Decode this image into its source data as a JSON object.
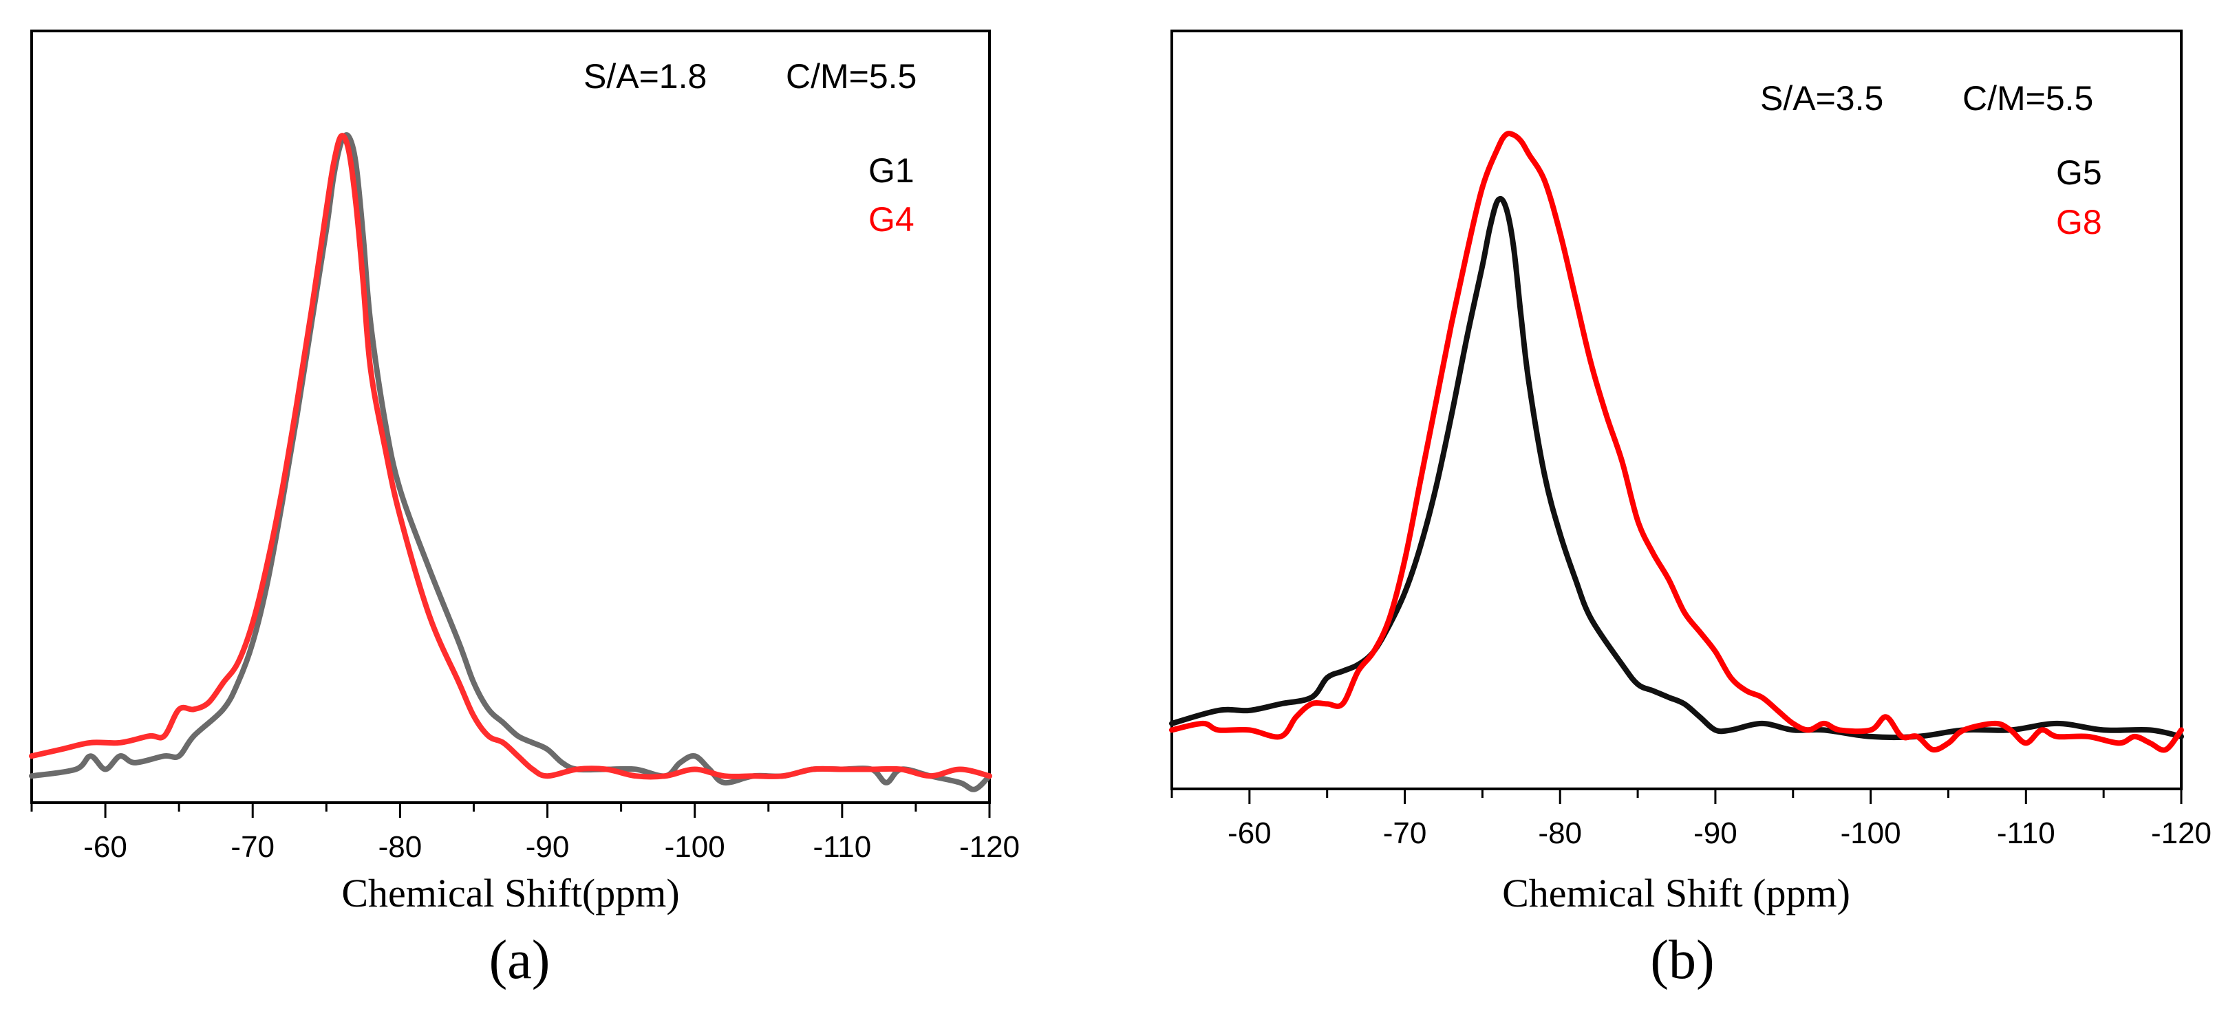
{
  "chart_data": [
    {
      "type": "line",
      "panel_label": "(a)",
      "xlabel": "Chemical Shift(ppm)",
      "ylabel": "",
      "xlim": [
        -55,
        -120
      ],
      "ylim": [
        0,
        1
      ],
      "x_ticks": [
        -60,
        -70,
        -80,
        -90,
        -100,
        -110,
        -120
      ],
      "x_tick_labels": [
        "-60",
        "-70",
        "-80",
        "-90",
        "-100",
        "-110",
        "-120"
      ],
      "annotation_sa": "S/A=1.8",
      "annotation_cm": "C/M=5.5",
      "series": [
        {
          "name": "G1",
          "color": "#6b6b6b",
          "x": [
            -55,
            -58,
            -59,
            -60,
            -61,
            -62,
            -64,
            -65,
            -66,
            -68,
            -69,
            -70,
            -71,
            -72,
            -73,
            -74,
            -75,
            -75.5,
            -76,
            -76.5,
            -77,
            -77.5,
            -78,
            -79,
            -80,
            -82,
            -84,
            -85,
            -86,
            -87,
            -88,
            -89,
            -90,
            -91,
            -92,
            -94,
            -96,
            -98,
            -99,
            -100,
            -101,
            -102,
            -104,
            -106,
            -108,
            -110,
            -112,
            -113,
            -114,
            -116,
            -118,
            -119,
            -120
          ],
          "values": [
            0.04,
            0.05,
            0.07,
            0.05,
            0.07,
            0.06,
            0.07,
            0.07,
            0.1,
            0.14,
            0.18,
            0.24,
            0.33,
            0.45,
            0.58,
            0.72,
            0.86,
            0.94,
            0.99,
            1.0,
            0.96,
            0.85,
            0.72,
            0.57,
            0.47,
            0.35,
            0.24,
            0.18,
            0.14,
            0.12,
            0.1,
            0.09,
            0.08,
            0.06,
            0.05,
            0.05,
            0.05,
            0.04,
            0.06,
            0.07,
            0.05,
            0.03,
            0.04,
            0.04,
            0.05,
            0.05,
            0.05,
            0.03,
            0.05,
            0.04,
            0.03,
            0.02,
            0.04
          ]
        },
        {
          "name": "G4",
          "color": "#ff2d2d",
          "x": [
            -55,
            -57,
            -59,
            -61,
            -63,
            -64,
            -65,
            -66,
            -67,
            -68,
            -69,
            -70,
            -71,
            -72,
            -73,
            -74,
            -75,
            -75.5,
            -76,
            -76.5,
            -77,
            -77.5,
            -78,
            -79,
            -80,
            -82,
            -84,
            -85,
            -86,
            -87,
            -88,
            -89,
            -90,
            -92,
            -94,
            -96,
            -98,
            -100,
            -102,
            -104,
            -106,
            -108,
            -110,
            -112,
            -114,
            -116,
            -118,
            -120
          ],
          "values": [
            0.07,
            0.08,
            0.09,
            0.09,
            0.1,
            0.1,
            0.14,
            0.14,
            0.15,
            0.18,
            0.21,
            0.27,
            0.36,
            0.47,
            0.6,
            0.74,
            0.89,
            0.96,
            1.0,
            0.98,
            0.9,
            0.78,
            0.65,
            0.53,
            0.43,
            0.28,
            0.18,
            0.13,
            0.1,
            0.09,
            0.07,
            0.05,
            0.04,
            0.05,
            0.05,
            0.04,
            0.04,
            0.05,
            0.04,
            0.04,
            0.04,
            0.05,
            0.05,
            0.05,
            0.05,
            0.04,
            0.05,
            0.04
          ]
        }
      ]
    },
    {
      "type": "line",
      "panel_label": "(b)",
      "xlabel": "Chemical Shift (ppm)",
      "ylabel": "",
      "xlim": [
        -55,
        -120
      ],
      "ylim": [
        0,
        1
      ],
      "x_ticks": [
        -60,
        -70,
        -80,
        -90,
        -100,
        -110,
        -120
      ],
      "x_tick_labels": [
        "-60",
        "-70",
        "-80",
        "-90",
        "-100",
        "-110",
        "-120"
      ],
      "annotation_sa": "S/A=3.5",
      "annotation_cm": "C/M=5.5",
      "series": [
        {
          "name": "G5",
          "color": "#111111",
          "x": [
            -55,
            -58,
            -60,
            -62,
            -64,
            -65,
            -66,
            -67,
            -68,
            -69,
            -70,
            -71,
            -72,
            -73,
            -74,
            -75,
            -75.5,
            -76,
            -76.5,
            -77,
            -77.5,
            -78,
            -79,
            -80,
            -81,
            -82,
            -84,
            -85,
            -86,
            -87,
            -88,
            -89,
            -90,
            -91,
            -93,
            -95,
            -97,
            -100,
            -103,
            -106,
            -109,
            -112,
            -115,
            -118,
            -120
          ],
          "values": [
            0.1,
            0.12,
            0.12,
            0.13,
            0.14,
            0.17,
            0.18,
            0.19,
            0.21,
            0.25,
            0.3,
            0.37,
            0.46,
            0.57,
            0.69,
            0.8,
            0.86,
            0.9,
            0.89,
            0.83,
            0.72,
            0.62,
            0.48,
            0.39,
            0.32,
            0.26,
            0.19,
            0.16,
            0.15,
            0.14,
            0.13,
            0.11,
            0.09,
            0.09,
            0.1,
            0.09,
            0.09,
            0.08,
            0.08,
            0.09,
            0.09,
            0.1,
            0.09,
            0.09,
            0.08
          ]
        },
        {
          "name": "G8",
          "color": "#ff0000",
          "x": [
            -55,
            -57,
            -58,
            -60,
            -62,
            -63,
            -64,
            -65,
            -66,
            -67,
            -68,
            -69,
            -70,
            -71,
            -72,
            -73,
            -74,
            -75,
            -76,
            -76.5,
            -77,
            -77.5,
            -78,
            -79,
            -80,
            -81,
            -82,
            -83,
            -84,
            -85,
            -86,
            -87,
            -88,
            -89,
            -90,
            -91,
            -92,
            -93,
            -94,
            -95,
            -96,
            -97,
            -98,
            -100,
            -101,
            -102,
            -103,
            -104,
            -105,
            -106,
            -108,
            -109,
            -110,
            -111,
            -112,
            -114,
            -116,
            -117,
            -118,
            -119,
            -120
          ],
          "values": [
            0.09,
            0.1,
            0.09,
            0.09,
            0.08,
            0.11,
            0.13,
            0.13,
            0.13,
            0.18,
            0.21,
            0.26,
            0.35,
            0.47,
            0.59,
            0.71,
            0.82,
            0.92,
            0.98,
            1.0,
            1.0,
            0.99,
            0.97,
            0.93,
            0.85,
            0.75,
            0.65,
            0.57,
            0.5,
            0.41,
            0.36,
            0.32,
            0.27,
            0.24,
            0.21,
            0.17,
            0.15,
            0.14,
            0.12,
            0.1,
            0.09,
            0.1,
            0.09,
            0.09,
            0.11,
            0.08,
            0.08,
            0.06,
            0.07,
            0.09,
            0.1,
            0.09,
            0.07,
            0.09,
            0.08,
            0.08,
            0.07,
            0.08,
            0.07,
            0.06,
            0.09
          ]
        }
      ]
    }
  ]
}
